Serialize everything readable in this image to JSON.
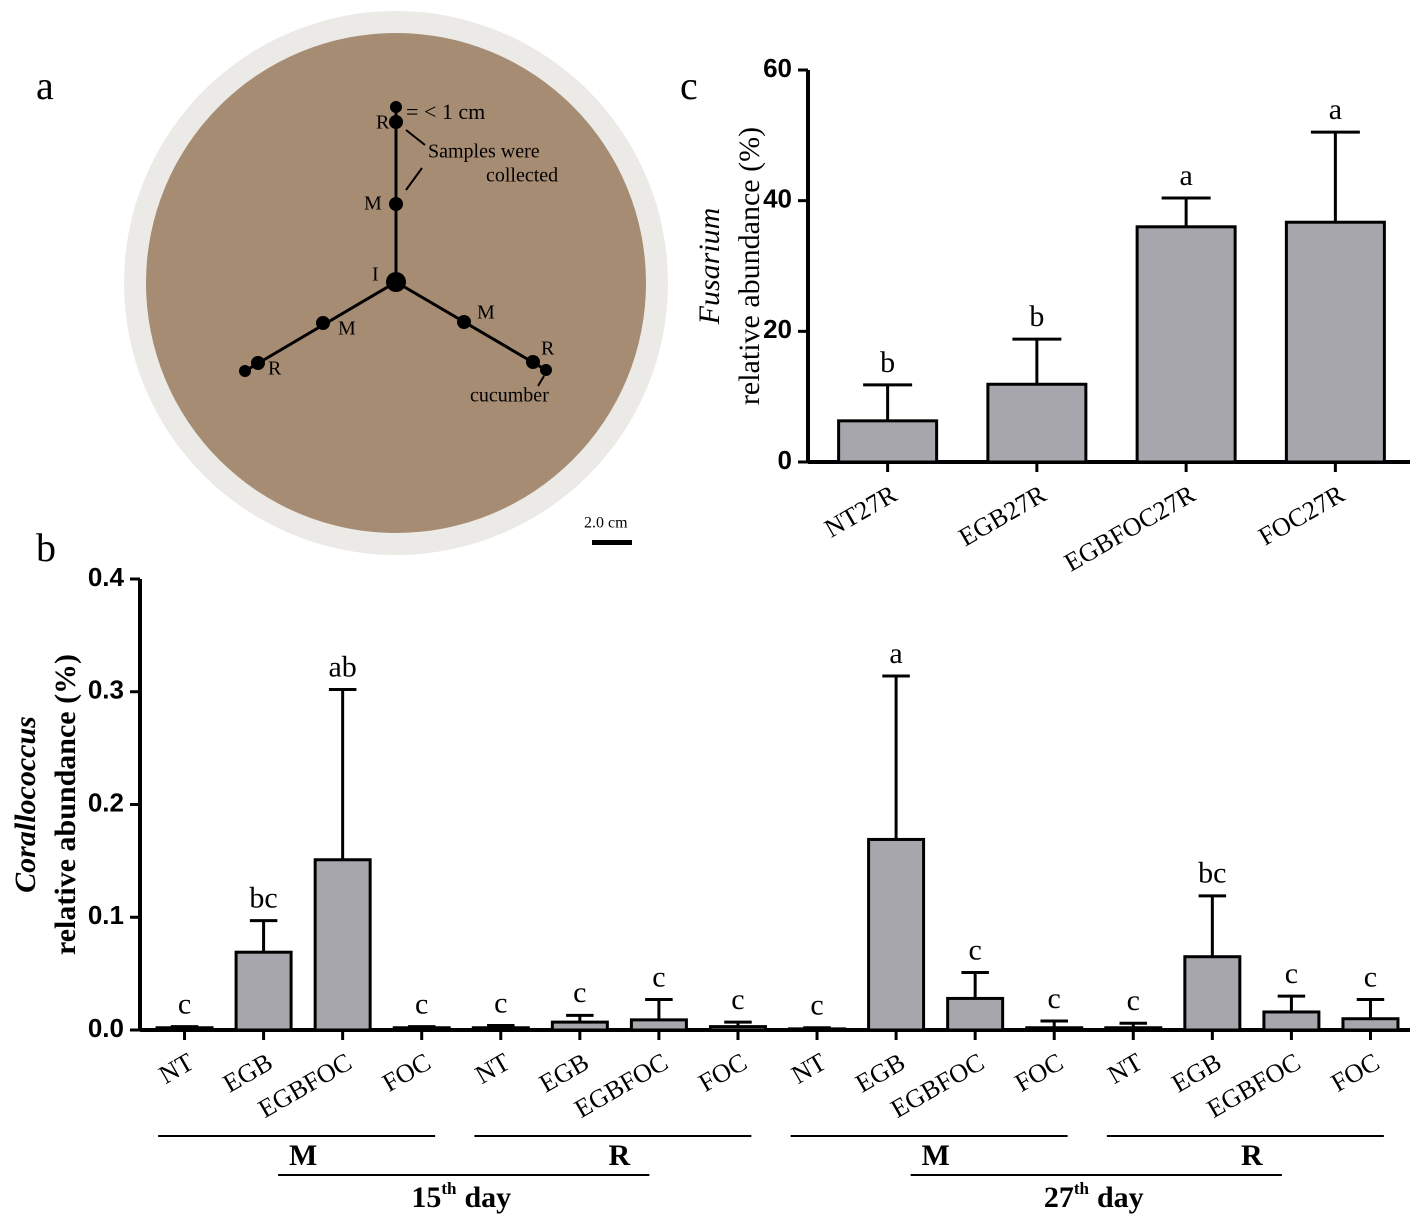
{
  "photo": {
    "panel": "a",
    "point_labels": [
      "R",
      "M",
      "I",
      "M",
      "R",
      "M",
      "R"
    ],
    "distance_label": "< 1 cm",
    "distance_sign": "=",
    "note": [
      "Samples were",
      "collected"
    ],
    "plant_label": "cucumber",
    "scale_label": "2.0 cm"
  },
  "chart_data": [
    {
      "type": "bar",
      "panel": "c",
      "y_label_italic": "Fusarium",
      "y_label": "relative abundance (%)",
      "categories": [
        "NT27R",
        "EGB27R",
        "EGBFOC27R",
        "FOC27R"
      ],
      "series": [
        {
          "color": "#a7a6ac",
          "values": [
            6.3,
            11.9,
            36.0,
            36.7
          ],
          "errors": [
            5.5,
            6.9,
            4.4,
            13.8
          ],
          "letters": [
            "b",
            "b",
            "a",
            "a"
          ]
        }
      ],
      "ylim": [
        0,
        60
      ],
      "yticks": [
        0,
        20,
        40,
        60
      ]
    },
    {
      "type": "bar",
      "panel": "b",
      "y_label_italic": "Corallococcus",
      "y_label": "relative abundance (%)",
      "categories": [
        "NT",
        "EGB",
        "EGBFOC",
        "FOC",
        "NT",
        "EGB",
        "EGBFOC",
        "FOC",
        "NT",
        "EGB",
        "EGBFOC",
        "FOC",
        "NT",
        "EGB",
        "EGBFOC",
        "FOC"
      ],
      "series": [
        {
          "color": "#a7a6ac",
          "values": [
            0.002,
            0.069,
            0.151,
            0.002,
            0.002,
            0.007,
            0.009,
            0.003,
            0.001,
            0.169,
            0.028,
            0.002,
            0.002,
            0.065,
            0.016,
            0.01
          ],
          "errors": [
            0.001,
            0.028,
            0.151,
            0.001,
            0.002,
            0.006,
            0.018,
            0.004,
            0.001,
            0.145,
            0.023,
            0.006,
            0.004,
            0.054,
            0.014,
            0.017
          ],
          "letters": [
            "c",
            "bc",
            "ab",
            "c",
            "c",
            "c",
            "c",
            "c",
            "c",
            "a",
            "c",
            "c",
            "c",
            "bc",
            "c",
            "c"
          ]
        }
      ],
      "groups": [
        "M",
        "R",
        "M",
        "R"
      ],
      "days": [
        {
          "number": "15",
          "suffix": "th",
          "word": "day"
        },
        {
          "number": "27",
          "suffix": "th",
          "word": "day"
        }
      ],
      "ylim": [
        0,
        0.4
      ],
      "yticks": [
        {
          "value": 0,
          "label": "0.0"
        },
        0.1,
        0.2,
        0.3,
        0.4
      ]
    }
  ]
}
